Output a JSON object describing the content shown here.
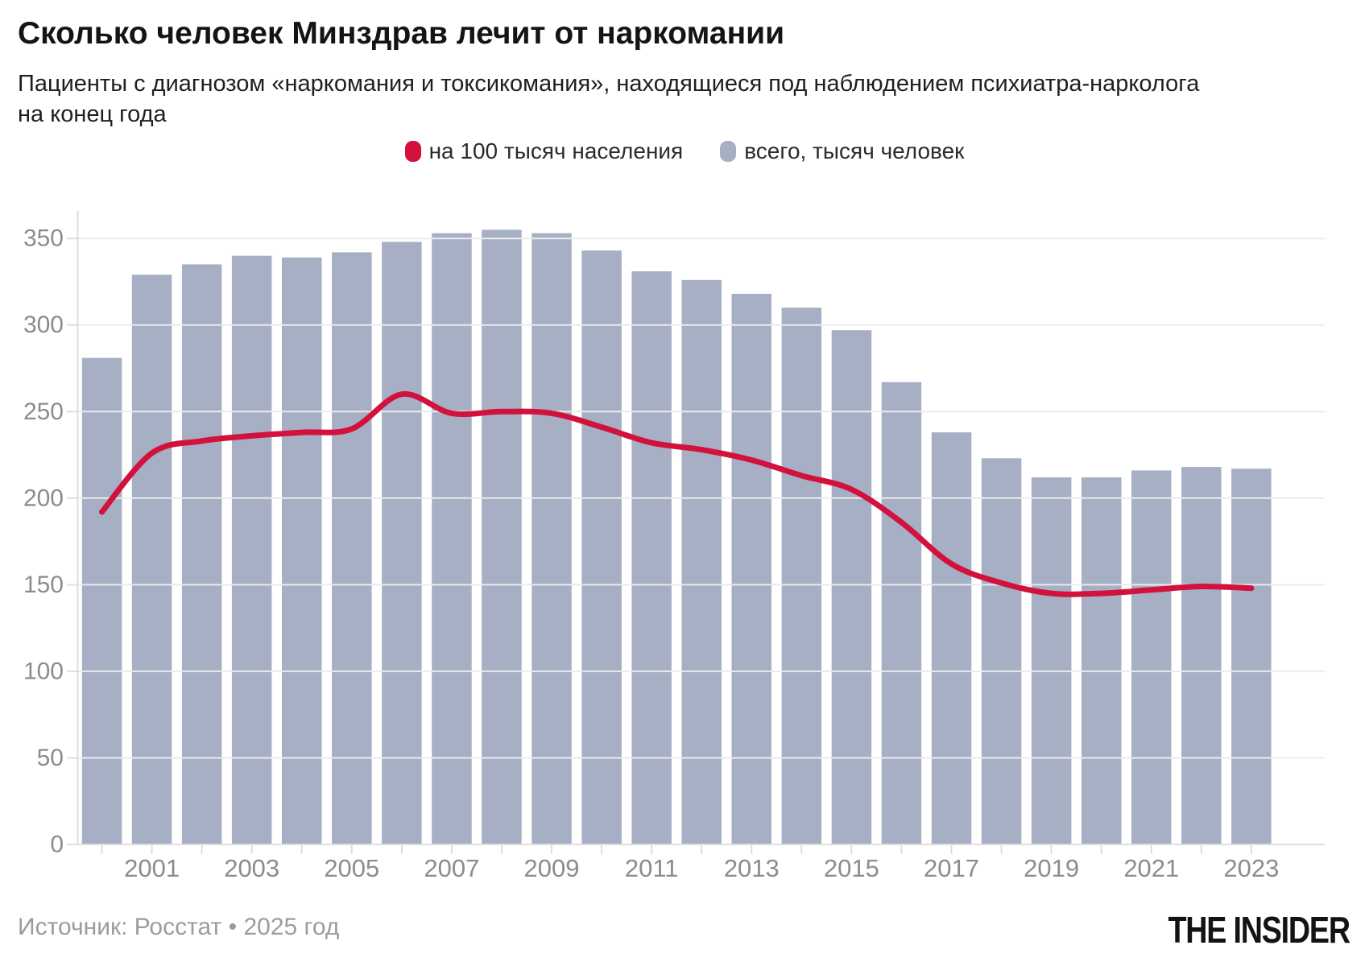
{
  "header": {
    "title": "Сколько человек Минздрав лечит от наркомании",
    "subtitle": "Пациенты с диагнозом «наркомания и токсикомания», находящиеся под наблюдением психиатра-нарколога на конец года"
  },
  "legend": [
    {
      "label": "на 100 тысяч населения",
      "marker": "red-dot-marker",
      "color": "#d2123c"
    },
    {
      "label": "всего, тысяч человек",
      "marker": "gray-square-marker",
      "color": "#a7afc4"
    }
  ],
  "chart_data": {
    "type": "bar",
    "title": "Сколько человек Минздрав лечит от наркомании",
    "categories": [
      2000,
      2001,
      2002,
      2003,
      2004,
      2005,
      2006,
      2007,
      2008,
      2009,
      2010,
      2011,
      2012,
      2013,
      2014,
      2015,
      2016,
      2017,
      2018,
      2019,
      2020,
      2021,
      2022,
      2023
    ],
    "series": [
      {
        "name": "всего, тысяч человек",
        "type": "bar",
        "color": "#a7afc4",
        "values": [
          281,
          329,
          335,
          340,
          339,
          342,
          348,
          353,
          355,
          353,
          343,
          331,
          326,
          318,
          310,
          297,
          267,
          238,
          223,
          212,
          212,
          216,
          218,
          217
        ]
      },
      {
        "name": "на 100 тысяч населения",
        "type": "line",
        "color": "#d2123c",
        "values": [
          192,
          226,
          233,
          236,
          238,
          240,
          260,
          249,
          250,
          249,
          241,
          232,
          228,
          222,
          213,
          205,
          186,
          162,
          151,
          145,
          145,
          147,
          149,
          148
        ]
      }
    ],
    "xlabel": "",
    "ylabel": "",
    "ylim": [
      0,
      350
    ],
    "y_ticks": [
      0,
      50,
      100,
      150,
      200,
      250,
      300,
      350
    ],
    "x_tick_labels": [
      "2001",
      "2003",
      "2005",
      "2007",
      "2009",
      "2011",
      "2013",
      "2015",
      "2017",
      "2019",
      "2021",
      "2023"
    ],
    "grid": true,
    "legend_position": "top"
  },
  "colors": {
    "bar": "#a7afc4",
    "line": "#d2123c",
    "grid": "#ebebeb",
    "axis": "#dedede",
    "axis_label": "#8c8c8c"
  },
  "footer": {
    "source": "Источник: Росстат • 2025 год",
    "brand": "THE INSIDER"
  }
}
